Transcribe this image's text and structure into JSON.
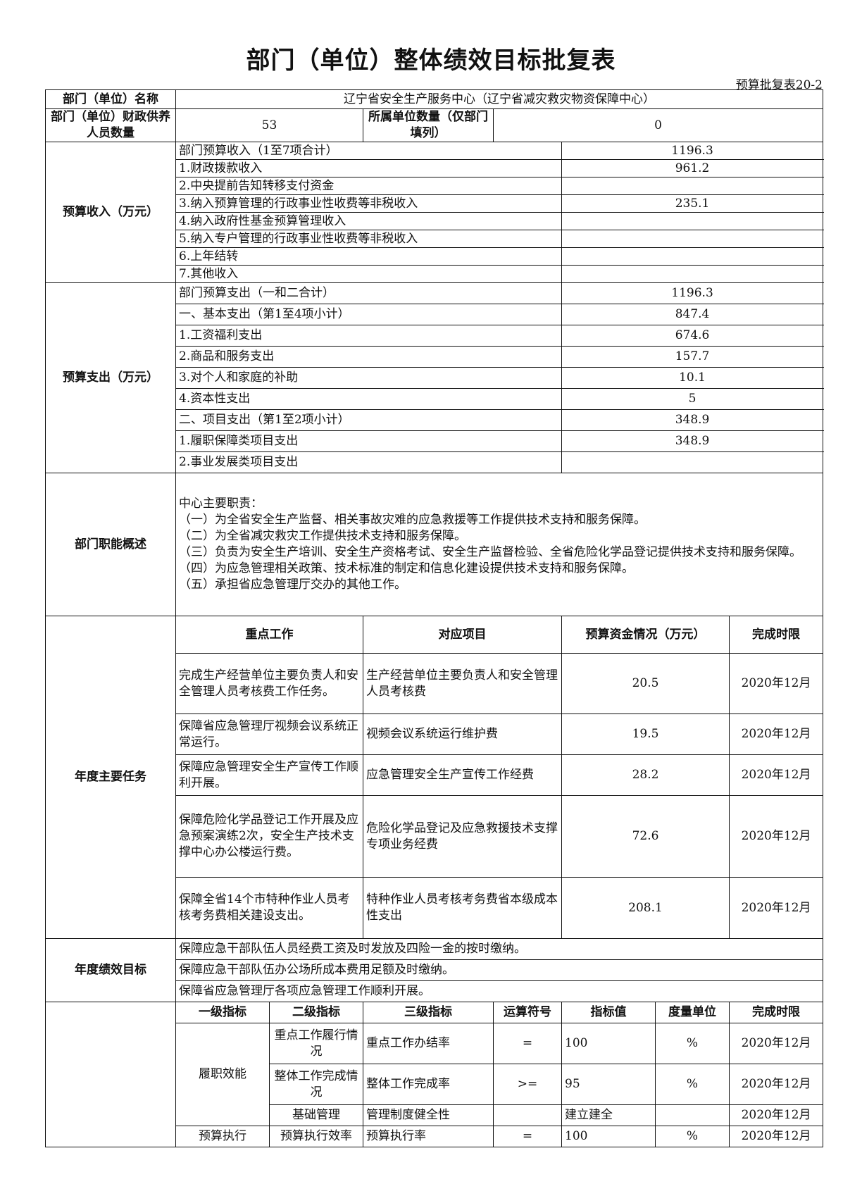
{
  "title": "部门（单位）整体绩效目标批复表",
  "form_code": "预算批复表20-2",
  "dept_name_label": "部门（单位）名称",
  "dept_name": "辽宁省安全生产服务中心（辽宁省减灾救灾物资保障中心）",
  "staff_label": "部门（单位）财政供养人员数量",
  "staff_count": "53",
  "sub_units_label": "所属单位数量（仅部门填列）",
  "sub_units_count": "0",
  "income": {
    "label": "预算收入（万元）",
    "items": [
      {
        "name": "部门预算收入（1至7项合计）",
        "value": "1196.3"
      },
      {
        "name": "1.财政拨款收入",
        "value": "961.2"
      },
      {
        "name": "2.中央提前告知转移支付资金",
        "value": ""
      },
      {
        "name": "3.纳入预算管理的行政事业性收费等非税收入",
        "value": "235.1"
      },
      {
        "name": "4.纳入政府性基金预算管理收入",
        "value": ""
      },
      {
        "name": "5.纳入专户管理的行政事业性收费等非税收入",
        "value": ""
      },
      {
        "name": "6.上年结转",
        "value": ""
      },
      {
        "name": "7.其他收入",
        "value": ""
      }
    ]
  },
  "expenditure": {
    "label": "预算支出（万元）",
    "items": [
      {
        "name": "部门预算支出（一和二合计）",
        "value": "1196.3"
      },
      {
        "name": "一、基本支出（第1至4项小计）",
        "value": "847.4"
      },
      {
        "name": "1.工资福利支出",
        "value": "674.6"
      },
      {
        "name": "2.商品和服务支出",
        "value": "157.7"
      },
      {
        "name": "3.对个人和家庭的补助",
        "value": "10.1"
      },
      {
        "name": "4.资本性支出",
        "value": "5"
      },
      {
        "name": "二、项目支出（第1至2项小计）",
        "value": "348.9"
      },
      {
        "name": "1.履职保障类项目支出",
        "value": "348.9"
      },
      {
        "name": "2.事业发展类项目支出",
        "value": ""
      }
    ]
  },
  "functions": {
    "label": "部门职能概述",
    "lines": [
      "中心主要职责：",
      "（一）为全省安全生产监督、相关事故灾难的应急救援等工作提供技术支持和服务保障。",
      "（二）为全省减灾救灾工作提供技术支持和服务保障。",
      "（三）负责为安全生产培训、安全生产资格考试、安全生产监督检验、全省危险化学品登记提供技术支持和服务保障。",
      "（四）为应急管理相关政策、技术标准的制定和信息化建设提供技术支持和服务保障。",
      "（五）承担省应急管理厅交办的其他工作。"
    ]
  },
  "tasks": {
    "label": "年度主要任务",
    "headers": [
      "重点工作",
      "对应项目",
      "预算资金情况（万元）",
      "完成时限"
    ],
    "rows": [
      {
        "work": "完成生产经营单位主要负责人和安全管理人员考核费工作任务。",
        "project": "生产经营单位主要负责人和安全管理人员考核费",
        "amount": "20.5",
        "deadline": "2020年12月"
      },
      {
        "work": "保障省应急管理厅视频会议系统正常运行。",
        "project": "视频会议系统运行维护费",
        "amount": "19.5",
        "deadline": "2020年12月"
      },
      {
        "work": "保障应急管理安全生产宣传工作顺利开展。",
        "project": "应急管理安全生产宣传工作经费",
        "amount": "28.2",
        "deadline": "2020年12月"
      },
      {
        "work": "保障危险化学品登记工作开展及应急预案演练2次，安全生产技术支撑中心办公楼运行费。",
        "project": "危险化学品登记及应急救援技术支撑专项业务经费",
        "amount": "72.6",
        "deadline": "2020年12月"
      },
      {
        "work": "保障全省14个市特种作业人员考核考务费相关建设支出。",
        "project": "特种作业人员考核考务费省本级成本性支出",
        "amount": "208.1",
        "deadline": "2020年12月"
      }
    ]
  },
  "goals": {
    "label": "年度绩效目标",
    "items": [
      "保障应急干部队伍人员经费工资及时发放及四险一金的按时缴纳。",
      "保障应急干部队伍办公场所成本费用足额及时缴纳。",
      "保障省应急管理厅各项应急管理工作顺利开展。"
    ]
  },
  "indicators": {
    "headers": [
      "一级指标",
      "二级指标",
      "三级指标",
      "运算符号",
      "指标值",
      "度量单位",
      "完成时限"
    ],
    "level1": [
      "履职效能",
      "预算执行"
    ],
    "rows": [
      {
        "l2": "重点工作履行情况",
        "l3": "重点工作办结率",
        "op": "=",
        "value": "100",
        "unit": "%",
        "deadline": "2020年12月"
      },
      {
        "l2": "整体工作完成情况",
        "l3": "整体工作完成率",
        "op": ">=",
        "value": "95",
        "unit": "%",
        "deadline": "2020年12月"
      },
      {
        "l2": "基础管理",
        "l3": "管理制度健全性",
        "op": "",
        "value": "建立建全",
        "unit": "",
        "deadline": "2020年12月"
      },
      {
        "l2": "预算执行效率",
        "l3": "预算执行率",
        "op": "=",
        "value": "100",
        "unit": "%",
        "deadline": "2020年12月"
      }
    ]
  }
}
